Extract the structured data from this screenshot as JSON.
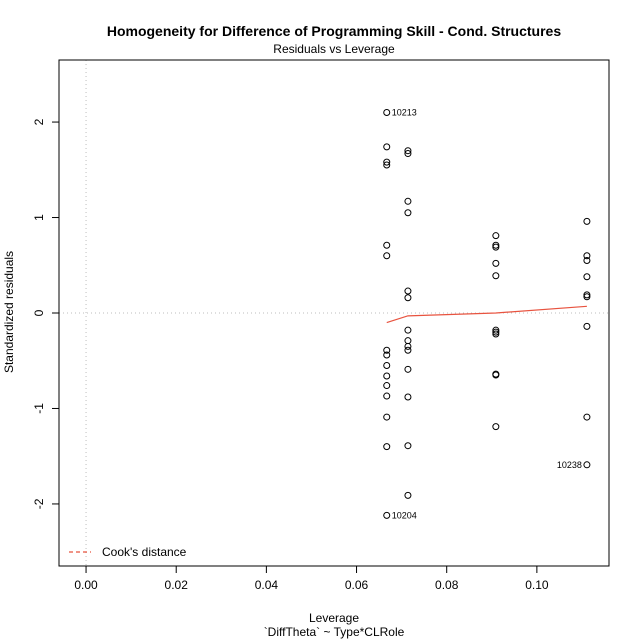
{
  "chart_data": {
    "type": "scatter",
    "title": "Homogeneity for Difference of Programming Skill - Cond. Structures",
    "subtitle": "Residuals vs Leverage",
    "xlabel": "Leverage",
    "xlabel2": "`DiffTheta` ~ Type*CLRole",
    "ylabel": "Standardized residuals",
    "xlim": [
      -0.006,
      0.116
    ],
    "ylim": [
      -2.65,
      2.65
    ],
    "x_ticks": [
      0.0,
      0.02,
      0.04,
      0.06,
      0.08,
      0.1
    ],
    "x_tick_labels": [
      "0.00",
      "0.02",
      "0.04",
      "0.06",
      "0.08",
      "0.10"
    ],
    "y_ticks": [
      -2,
      -1,
      0,
      1,
      2
    ],
    "y_tick_labels": [
      "-2",
      "-1",
      "0",
      "1",
      "2"
    ],
    "grid": false,
    "reference_lines": [
      {
        "axis": "y",
        "value": 0
      },
      {
        "axis": "x",
        "value": 0
      }
    ],
    "points": [
      {
        "x": 0.0667,
        "y": 2.1
      },
      {
        "x": 0.0667,
        "y": 1.74
      },
      {
        "x": 0.0667,
        "y": 1.58
      },
      {
        "x": 0.0667,
        "y": 1.55
      },
      {
        "x": 0.0667,
        "y": 0.71
      },
      {
        "x": 0.0667,
        "y": 0.6
      },
      {
        "x": 0.0667,
        "y": -0.39
      },
      {
        "x": 0.0667,
        "y": -0.44
      },
      {
        "x": 0.0667,
        "y": -0.55
      },
      {
        "x": 0.0667,
        "y": -0.66
      },
      {
        "x": 0.0667,
        "y": -0.76
      },
      {
        "x": 0.0667,
        "y": -0.87
      },
      {
        "x": 0.0667,
        "y": -1.09
      },
      {
        "x": 0.0667,
        "y": -1.4
      },
      {
        "x": 0.0667,
        "y": -2.12
      },
      {
        "x": 0.0714,
        "y": 1.7
      },
      {
        "x": 0.0714,
        "y": 1.67
      },
      {
        "x": 0.0714,
        "y": 1.17
      },
      {
        "x": 0.0714,
        "y": 1.05
      },
      {
        "x": 0.0714,
        "y": 0.23
      },
      {
        "x": 0.0714,
        "y": 0.16
      },
      {
        "x": 0.0714,
        "y": -0.18
      },
      {
        "x": 0.0714,
        "y": -0.29
      },
      {
        "x": 0.0714,
        "y": -0.35
      },
      {
        "x": 0.0714,
        "y": -0.39
      },
      {
        "x": 0.0714,
        "y": -0.59
      },
      {
        "x": 0.0714,
        "y": -0.88
      },
      {
        "x": 0.0714,
        "y": -1.39
      },
      {
        "x": 0.0714,
        "y": -1.91
      },
      {
        "x": 0.0909,
        "y": 0.81
      },
      {
        "x": 0.0909,
        "y": 0.71
      },
      {
        "x": 0.0909,
        "y": 0.69
      },
      {
        "x": 0.0909,
        "y": 0.52
      },
      {
        "x": 0.0909,
        "y": 0.39
      },
      {
        "x": 0.0909,
        "y": -0.18
      },
      {
        "x": 0.0909,
        "y": -0.2
      },
      {
        "x": 0.0909,
        "y": -0.22
      },
      {
        "x": 0.0909,
        "y": -0.64
      },
      {
        "x": 0.0909,
        "y": -0.65
      },
      {
        "x": 0.0909,
        "y": -1.19
      },
      {
        "x": 0.1111,
        "y": 0.96
      },
      {
        "x": 0.1111,
        "y": 0.6
      },
      {
        "x": 0.1111,
        "y": 0.55
      },
      {
        "x": 0.1111,
        "y": 0.38
      },
      {
        "x": 0.1111,
        "y": 0.19
      },
      {
        "x": 0.1111,
        "y": 0.17
      },
      {
        "x": 0.1111,
        "y": -0.14
      },
      {
        "x": 0.1111,
        "y": -1.09
      },
      {
        "x": 0.1111,
        "y": -1.59
      }
    ],
    "point_labels": [
      {
        "text": "10213",
        "x": 0.0667,
        "y": 2.1,
        "side": "right"
      },
      {
        "text": "10204",
        "x": 0.0667,
        "y": -2.12,
        "side": "right"
      },
      {
        "text": "10238",
        "x": 0.1111,
        "y": -1.59,
        "side": "left"
      }
    ],
    "smooth_line": {
      "color": "#e8533f",
      "x": [
        0.0667,
        0.0714,
        0.0909,
        0.1111
      ],
      "y": [
        -0.1,
        -0.03,
        0.0,
        0.07
      ]
    },
    "legend": {
      "position": "bottom-left",
      "entries": [
        {
          "label": "Cook's distance",
          "color": "#e8533f",
          "style": "dashed"
        }
      ]
    }
  }
}
